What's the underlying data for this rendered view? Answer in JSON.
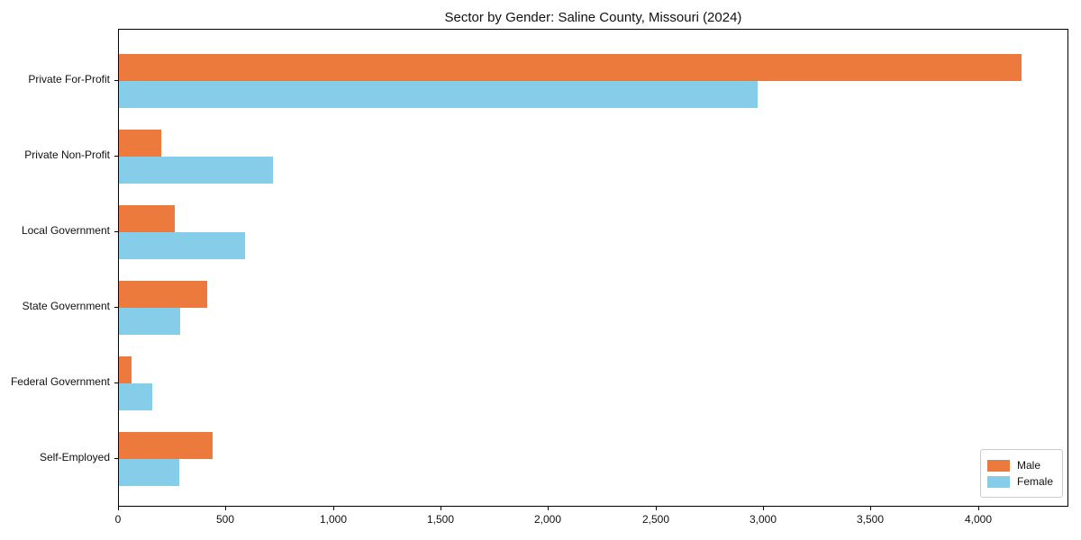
{
  "chart_data": {
    "type": "bar",
    "orientation": "horizontal",
    "title": "Sector by Gender: Saline County, Missouri (2024)",
    "categories": [
      "Private For-Profit",
      "Private Non-Profit",
      "Local Government",
      "State Government",
      "Federal Government",
      "Self-Employed"
    ],
    "series": [
      {
        "name": "Male",
        "color": "#ec7a3c",
        "values": [
          4200,
          195,
          260,
          410,
          60,
          435
        ]
      },
      {
        "name": "Female",
        "color": "#85cde8",
        "values": [
          2970,
          715,
          585,
          285,
          155,
          280
        ]
      }
    ],
    "xlim": [
      0,
      4420
    ],
    "xticks": [
      0,
      500,
      1000,
      1500,
      2000,
      2500,
      3000,
      3500,
      4000
    ],
    "xtick_labels": [
      "0",
      "500",
      "1,000",
      "1,500",
      "2,000",
      "2,500",
      "3,000",
      "3,500",
      "4,000"
    ],
    "ylabel": "",
    "xlabel": "",
    "grid": false,
    "legend": {
      "position": "lower right",
      "entries": [
        {
          "label": "Male",
          "color": "#ec7a3c"
        },
        {
          "label": "Female",
          "color": "#85cde8"
        }
      ]
    },
    "colors": {
      "spine": "#000000",
      "text": "#111111",
      "background": "#ffffff"
    }
  }
}
